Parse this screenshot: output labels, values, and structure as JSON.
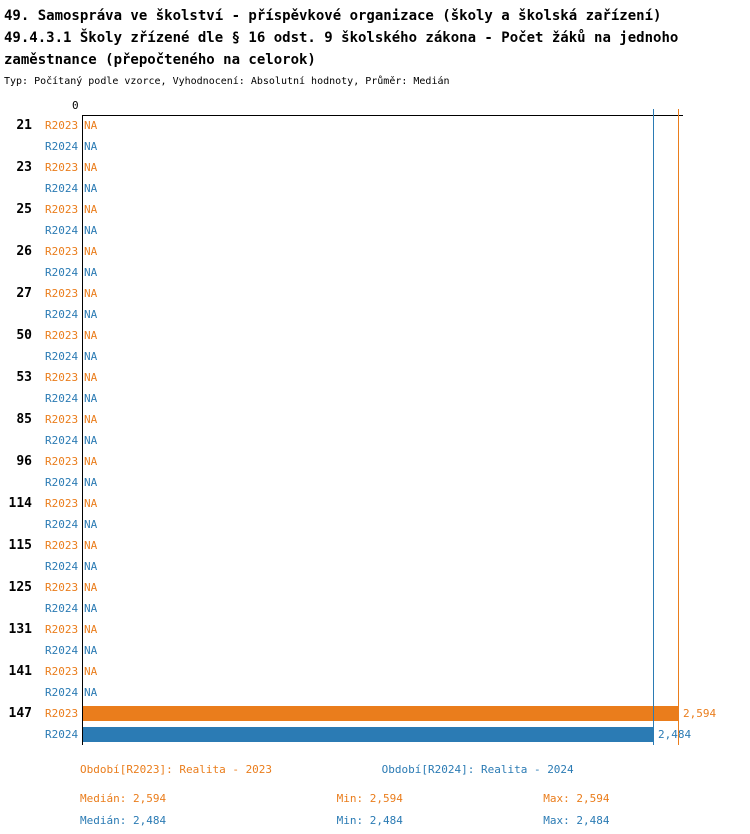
{
  "chart_data": {
    "type": "bar",
    "orientation": "horizontal",
    "title": "49. Samospráva ve školství - příspěvkové organizace (školy a školská zařízení)",
    "subtitle": "49.4.3.1 Školy zřízené dle § 16 odst. 9 školského zákona - Počet žáků na jednoho zaměstnance (přepočteného na celorok)",
    "note": "Typ: Počítaný podle vzorce, Vyhodnocení: Absolutní hodnoty, Průměr: Medián",
    "xlim": [
      0,
      2.594
    ],
    "x_tick_labels": [
      "0"
    ],
    "na_label": "NA",
    "grid": false,
    "legend_position": "bottom",
    "categories": [
      "21",
      "23",
      "25",
      "26",
      "27",
      "50",
      "53",
      "85",
      "96",
      "114",
      "115",
      "125",
      "131",
      "141",
      "147"
    ],
    "series": [
      {
        "name": "R2023",
        "color": "#ea7d1c",
        "values": [
          null,
          null,
          null,
          null,
          null,
          null,
          null,
          null,
          null,
          null,
          null,
          null,
          null,
          null,
          2.594
        ],
        "value_labels": [
          "NA",
          "NA",
          "NA",
          "NA",
          "NA",
          "NA",
          "NA",
          "NA",
          "NA",
          "NA",
          "NA",
          "NA",
          "NA",
          "NA",
          "2,594"
        ],
        "median": 2.594,
        "min": 2.594,
        "max": 2.594
      },
      {
        "name": "R2024",
        "color": "#2b7bb4",
        "values": [
          null,
          null,
          null,
          null,
          null,
          null,
          null,
          null,
          null,
          null,
          null,
          null,
          null,
          null,
          2.484
        ],
        "value_labels": [
          "NA",
          "NA",
          "NA",
          "NA",
          "NA",
          "NA",
          "NA",
          "NA",
          "NA",
          "NA",
          "NA",
          "NA",
          "NA",
          "NA",
          "2,484"
        ],
        "median": 2.484,
        "min": 2.484,
        "max": 2.484
      }
    ],
    "reference_lines": [
      {
        "name": "median-line-r2023",
        "value": 2.594,
        "color": "#ea7d1c"
      },
      {
        "name": "median-line-r2024",
        "value": 2.484,
        "color": "#2b7bb4"
      }
    ]
  },
  "legend": {
    "items": [
      {
        "label": "Období[R2023]: Realita - 2023",
        "color": "#ea7d1c"
      },
      {
        "label": "Období[R2024]: Realita - 2024",
        "color": "#2b7bb4"
      }
    ]
  },
  "stats": {
    "rows": [
      {
        "median_label": "Medián: 2,594",
        "min_label": "Min: 2,594",
        "max_label": "Max: 2,594",
        "color": "#ea7d1c"
      },
      {
        "median_label": "Medián: 2,484",
        "min_label": "Min: 2,484",
        "max_label": "Max: 2,484",
        "color": "#2b7bb4"
      }
    ]
  }
}
